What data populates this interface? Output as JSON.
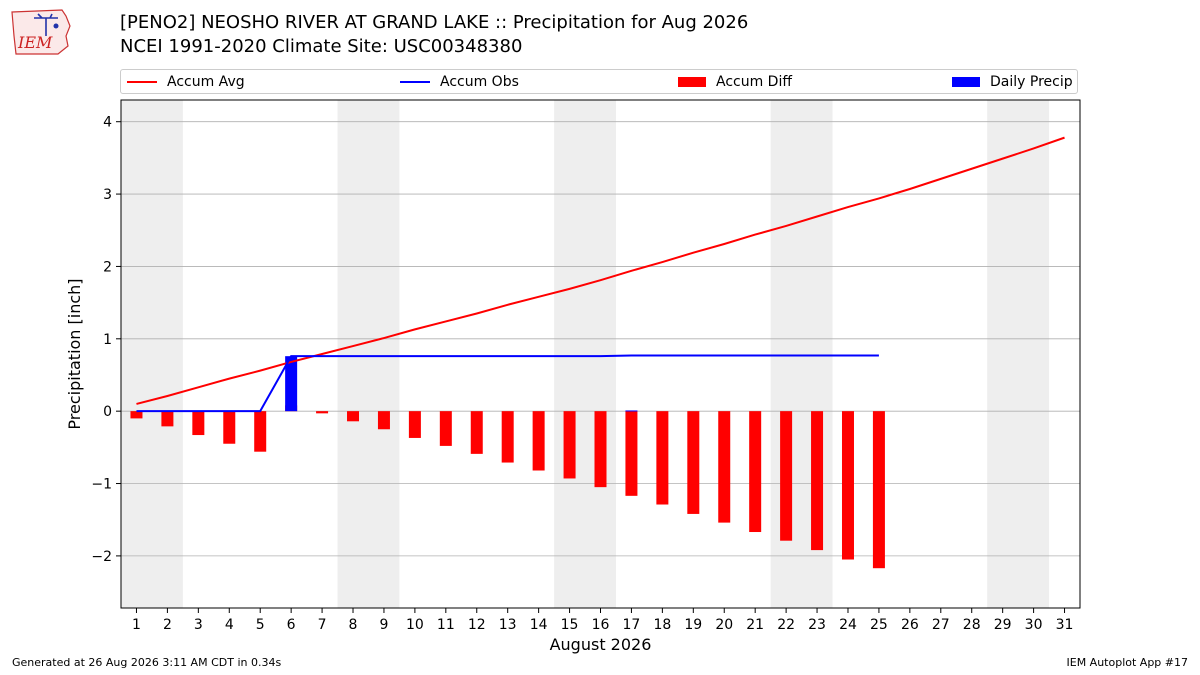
{
  "header": {
    "title_line1": "[PENO2] NEOSHO RIVER  AT GRAND LAKE :: Precipitation for Aug 2026",
    "title_line2": "NCEI 1991-2020 Climate Site: USC00348380"
  },
  "logo": {
    "text": "IEM"
  },
  "legend": {
    "placement": "top",
    "items": [
      {
        "label": "Accum Avg",
        "kind": "line",
        "color": "#ff0000"
      },
      {
        "label": "Accum Obs",
        "kind": "line",
        "color": "#0000ff"
      },
      {
        "label": "Accum Diff",
        "kind": "box",
        "color": "#ff0000"
      },
      {
        "label": "Daily Precip",
        "kind": "box",
        "color": "#0000ff"
      }
    ]
  },
  "footer": {
    "generated": "Generated at 26 Aug 2026 3:11 AM CDT in 0.34s",
    "app": "IEM Autoplot App #17"
  },
  "chart_data": {
    "type": "bar",
    "xlabel": "August 2026",
    "ylabel": "Precipitation [inch]",
    "ylim": [
      -2.72,
      4.3
    ],
    "xlim": [
      0.5,
      31.5
    ],
    "yticks": [
      "−2",
      "−1",
      "0",
      "1",
      "2",
      "3",
      "4"
    ],
    "ytick_values": [
      -2,
      -1,
      0,
      1,
      2,
      3,
      4
    ],
    "days": [
      "1",
      "2",
      "3",
      "4",
      "5",
      "6",
      "7",
      "8",
      "9",
      "10",
      "11",
      "12",
      "13",
      "14",
      "15",
      "16",
      "17",
      "18",
      "19",
      "20",
      "21",
      "22",
      "23",
      "24",
      "25",
      "26",
      "27",
      "28",
      "29",
      "30",
      "31"
    ],
    "grid": "horizontal",
    "weekend_shading": [
      [
        0.5,
        2.5
      ],
      [
        7.5,
        9.5
      ],
      [
        14.5,
        16.5
      ],
      [
        21.5,
        23.5
      ],
      [
        28.5,
        30.5
      ]
    ],
    "colors": {
      "avg": "#ff0000",
      "obs": "#0000ff",
      "diff": "#ff0000",
      "daily": "#0000ff",
      "shade": "#eeeeee",
      "grid": "#b0b0b0"
    },
    "series": [
      {
        "name": "Accum Avg",
        "type": "line",
        "values": [
          0.1,
          0.21,
          0.33,
          0.45,
          0.56,
          0.68,
          0.79,
          0.9,
          1.01,
          1.13,
          1.24,
          1.35,
          1.47,
          1.58,
          1.69,
          1.81,
          1.94,
          2.06,
          2.19,
          2.31,
          2.44,
          2.56,
          2.69,
          2.82,
          2.94,
          3.07,
          3.21,
          3.35,
          3.49,
          3.63,
          3.78
        ]
      },
      {
        "name": "Accum Obs",
        "type": "line",
        "values": [
          0,
          0,
          0,
          0,
          0,
          0.76,
          0.76,
          0.76,
          0.76,
          0.76,
          0.76,
          0.76,
          0.76,
          0.76,
          0.76,
          0.76,
          0.77,
          0.77,
          0.77,
          0.77,
          0.77,
          0.77,
          0.77,
          0.77,
          0.77
        ]
      },
      {
        "name": "Accum Diff",
        "type": "bar",
        "values": [
          -0.1,
          -0.21,
          -0.33,
          -0.45,
          -0.56,
          0.08,
          -0.03,
          -0.14,
          -0.25,
          -0.37,
          -0.48,
          -0.59,
          -0.71,
          -0.82,
          -0.93,
          -1.05,
          -1.17,
          -1.29,
          -1.42,
          -1.54,
          -1.67,
          -1.79,
          -1.92,
          -2.05,
          -2.17
        ]
      },
      {
        "name": "Daily Precip",
        "type": "bar",
        "values": [
          0,
          0,
          0,
          0,
          0,
          0.76,
          0,
          0,
          0,
          0,
          0,
          0,
          0,
          0,
          0,
          0,
          0.01,
          0,
          0,
          0,
          0,
          0,
          0,
          0,
          0
        ]
      }
    ]
  }
}
